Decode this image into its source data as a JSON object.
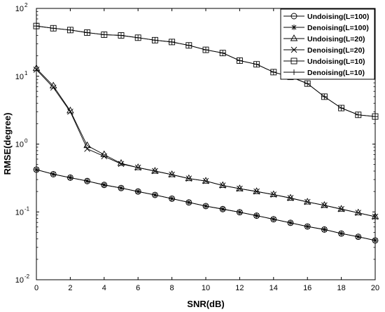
{
  "chart_data": {
    "type": "line",
    "xlabel": "SNR(dB)",
    "ylabel": "RMSE(degree)",
    "xlim": [
      0,
      20
    ],
    "ylim": [
      0.01,
      100
    ],
    "yscale": "log",
    "grid": false,
    "legend_position": "top-right",
    "x_ticks": [
      "0",
      "2",
      "4",
      "6",
      "8",
      "10",
      "12",
      "14",
      "16",
      "18",
      "20"
    ],
    "y_ticks": [
      {
        "base": "10",
        "exp": "-2"
      },
      {
        "base": "10",
        "exp": "-1"
      },
      {
        "base": "10",
        "exp": "0"
      },
      {
        "base": "10",
        "exp": "1"
      },
      {
        "base": "10",
        "exp": "2"
      }
    ],
    "x": [
      0,
      1,
      2,
      3,
      4,
      5,
      6,
      7,
      8,
      9,
      10,
      11,
      12,
      13,
      14,
      15,
      16,
      17,
      18,
      19,
      20
    ],
    "series": [
      {
        "name": "Undoising(L=100)",
        "marker": "circle",
        "values": [
          0.42,
          0.36,
          0.32,
          0.285,
          0.25,
          0.225,
          0.2,
          0.178,
          0.157,
          0.138,
          0.122,
          0.11,
          0.099,
          0.088,
          0.078,
          0.069,
          0.061,
          0.055,
          0.048,
          0.043,
          0.038
        ]
      },
      {
        "name": "Denoising(L=100)",
        "marker": "asterisk",
        "values": [
          0.42,
          0.36,
          0.32,
          0.285,
          0.25,
          0.225,
          0.2,
          0.178,
          0.157,
          0.138,
          0.122,
          0.11,
          0.099,
          0.088,
          0.078,
          0.069,
          0.061,
          0.055,
          0.048,
          0.043,
          0.038
        ]
      },
      {
        "name": "Undoising(L=20)",
        "marker": "triangle",
        "values": [
          13,
          7.2,
          3.1,
          0.95,
          0.7,
          0.52,
          0.45,
          0.4,
          0.355,
          0.31,
          0.285,
          0.245,
          0.22,
          0.2,
          0.18,
          0.16,
          0.14,
          0.125,
          0.11,
          0.097,
          0.085
        ]
      },
      {
        "name": "Denoising(L=20)",
        "marker": "x",
        "values": [
          12.5,
          6.8,
          3.0,
          0.85,
          0.66,
          0.51,
          0.45,
          0.4,
          0.355,
          0.31,
          0.285,
          0.245,
          0.22,
          0.2,
          0.18,
          0.16,
          0.14,
          0.125,
          0.11,
          0.097,
          0.085
        ]
      },
      {
        "name": "Undoising(L=10)",
        "marker": "square",
        "values": [
          55,
          51,
          48,
          44,
          41,
          40,
          37,
          34,
          32,
          28.5,
          24.5,
          22,
          17,
          15,
          11.5,
          9.8,
          7.8,
          5,
          3.4,
          2.7,
          2.55
        ]
      },
      {
        "name": "Denoising(L=10)",
        "marker": "plus",
        "values": [
          55,
          51,
          48,
          44,
          41,
          40,
          37,
          34,
          32,
          28.5,
          24.5,
          22,
          17,
          15,
          11.5,
          9.8,
          7.8,
          5,
          3.4,
          2.7,
          2.55
        ]
      }
    ]
  }
}
